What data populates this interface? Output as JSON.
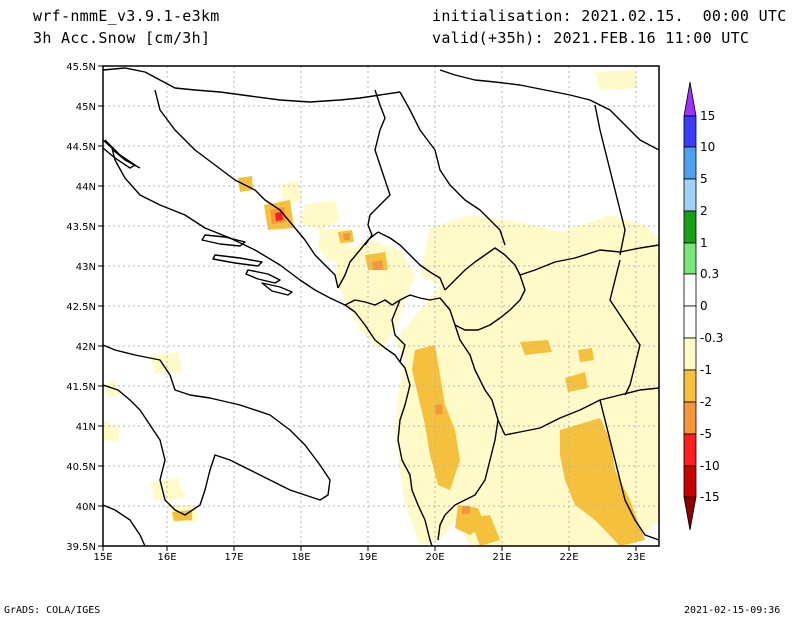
{
  "header": {
    "model": "wrf-nmmE_v3.9.1-e3km",
    "variable": "3h Acc.Snow [cm/3h]",
    "init": "initialisation: 2021.02.15.  00:00 UTC",
    "valid": "valid(+35h): 2021.FEB.16 11:00 UTC"
  },
  "axes": {
    "lon_labels": [
      "15E",
      "16E",
      "17E",
      "18E",
      "19E",
      "20E",
      "21E",
      "22E",
      "23E"
    ],
    "lat_labels": [
      "45.5N",
      "45N",
      "44.5N",
      "44N",
      "43.5N",
      "43N",
      "42.5N",
      "42N",
      "41.5N",
      "41N",
      "40.5N",
      "40N",
      "39.5N"
    ],
    "lon_range": [
      15,
      23.3
    ],
    "lat_range": [
      39.5,
      45.5
    ]
  },
  "colorbar": {
    "labels": [
      "15",
      "10",
      "5",
      "2",
      "1",
      "0.3",
      "0",
      "-0.3",
      "-1",
      "-2",
      "-5",
      "-10",
      "-15"
    ],
    "colors": [
      "#9b30ff",
      "#3c3cff",
      "#4ea0f0",
      "#a0d2fa",
      "#16a016",
      "#78e678",
      "#ffffff",
      "#ffffff",
      "#fffac8",
      "#f5c03c",
      "#f5963c",
      "#ff1e1e",
      "#c80000",
      "#8c0000"
    ]
  },
  "footer": {
    "left": "GrADS: COLA/IGES",
    "right": "2021-02-15-09:36"
  }
}
